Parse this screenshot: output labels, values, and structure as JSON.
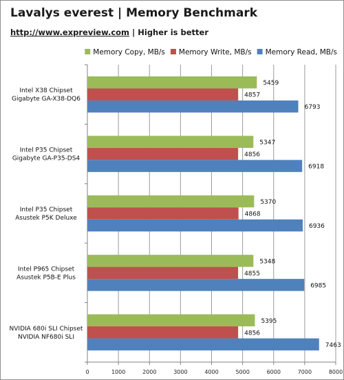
{
  "header": {
    "title": "Lavalys everest | Memory Benchmark",
    "url": "http://www.expreview.com",
    "note": " | Higher is better"
  },
  "chart_data": {
    "type": "bar",
    "orientation": "horizontal",
    "title": "Lavalys everest | Memory Benchmark",
    "subtitle": "http://www.expreview.com | Higher is better",
    "categories": [
      [
        "Intel X38 Chipset",
        "Gigabyte GA-X38-DQ6"
      ],
      [
        "Intel P35 Chipset",
        "Gigabyte GA-P35-DS4"
      ],
      [
        "Intel P35 Chipset",
        "Asustek P5K Deluxe"
      ],
      [
        "Intel P965 Chipset",
        "Asustek P5B-E Plus"
      ],
      [
        "NVIDIA 680i SLI Chipset",
        "NVIDIA NF680i SLI"
      ]
    ],
    "series": [
      {
        "name": "Memory Copy, MB/s",
        "color": "#9bbb59",
        "values": [
          5459,
          5347,
          5370,
          5348,
          5395
        ]
      },
      {
        "name": "Memory Write, MB/s",
        "color": "#c0504d",
        "values": [
          4857,
          4856,
          4868,
          4855,
          4856
        ]
      },
      {
        "name": "Memory Read, MB/s",
        "color": "#4f81bd",
        "values": [
          6793,
          6918,
          6936,
          6985,
          7463
        ]
      }
    ],
    "xlim": [
      0,
      8000
    ],
    "xticks": [
      0,
      1000,
      2000,
      3000,
      4000,
      5000,
      6000,
      7000,
      8000
    ],
    "grid": "vertical",
    "legend_position": "top"
  }
}
